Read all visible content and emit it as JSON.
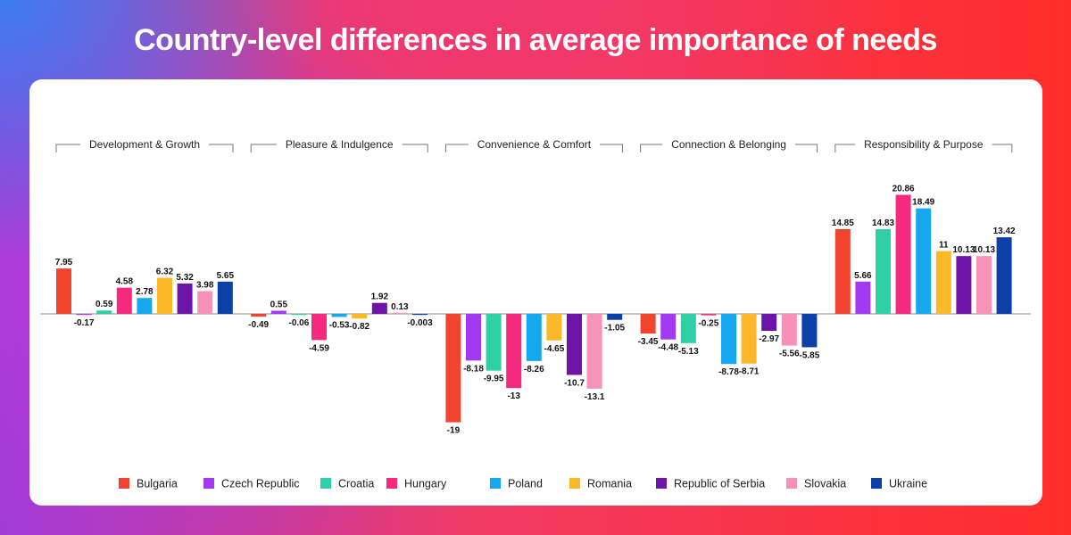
{
  "title": "Country-level differences in average importance of needs",
  "chart_data": {
    "type": "bar",
    "title": "Country-level differences in average importance of needs",
    "xlabel": "",
    "ylabel": "",
    "ylim": [
      -22,
      22
    ],
    "grid": false,
    "legend_position": "bottom",
    "categories": [
      "Development & Growth",
      "Pleasure & Indulgence",
      "Convenience & Comfort",
      "Connection & Belonging",
      "Responsibility & Purpose"
    ],
    "series": [
      {
        "name": "Bulgaria",
        "color": "#f2432f",
        "values": [
          7.95,
          -0.49,
          -19,
          -3.45,
          14.85
        ],
        "labels": [
          "7.95",
          "-0.49",
          "-19",
          "-3.45",
          "14.85"
        ]
      },
      {
        "name": "Czech Republic",
        "color": "#a23af2",
        "values": [
          -0.17,
          0.55,
          -8.18,
          -4.48,
          5.66
        ],
        "labels": [
          "-0.17",
          "0.55",
          "-8.18",
          "-4.48",
          "5.66"
        ]
      },
      {
        "name": "Croatia",
        "color": "#2fd0a6",
        "values": [
          0.59,
          -0.06,
          -9.95,
          -5.13,
          14.83
        ],
        "labels": [
          "0.59",
          "-0.06",
          "-9.95",
          "-5.13",
          "14.83"
        ]
      },
      {
        "name": "Hungary",
        "color": "#f5297e",
        "values": [
          4.58,
          -4.59,
          -13,
          -0.25,
          20.86
        ],
        "labels": [
          "4.58",
          "-4.59",
          "-13",
          "-0.25",
          "20.86"
        ]
      },
      {
        "name": "Poland",
        "color": "#16a8ee",
        "values": [
          2.78,
          -0.53,
          -8.26,
          -8.78,
          18.49
        ],
        "labels": [
          "2.78",
          "-0.53",
          "-8.26",
          "-8.78",
          "18.49"
        ]
      },
      {
        "name": "Romania",
        "color": "#fbb829",
        "values": [
          6.32,
          -0.82,
          -4.65,
          -8.71,
          11
        ],
        "labels": [
          "6.32",
          "-0.82",
          "-4.65",
          "-8.71",
          "11"
        ]
      },
      {
        "name": "Republic of Serbia",
        "color": "#6c14a8",
        "values": [
          5.32,
          1.92,
          -10.7,
          -2.97,
          10.13
        ],
        "labels": [
          "5.32",
          "1.92",
          "-10.7",
          "-2.97",
          "10.13"
        ]
      },
      {
        "name": "Slovakia",
        "color": "#f691b8",
        "values": [
          3.98,
          0.13,
          -13.1,
          -5.56,
          10.13
        ],
        "labels": [
          "3.98",
          "0.13",
          "-13.1",
          "-5.56",
          "10.13"
        ]
      },
      {
        "name": "Ukraine",
        "color": "#0d3fa8",
        "values": [
          5.65,
          -0.003,
          -1.05,
          -5.85,
          13.42
        ],
        "labels": [
          "5.65",
          "-0.003",
          "-1.05",
          "-5.85",
          "13.42"
        ]
      }
    ]
  }
}
